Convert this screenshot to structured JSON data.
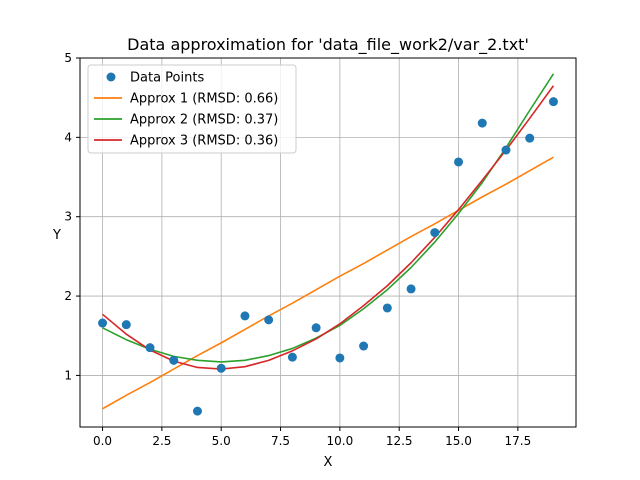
{
  "chart_data": {
    "type": "line",
    "title": "Data approximation for 'data_file_work2/var_2.txt'",
    "xlabel": "X",
    "ylabel": "Y",
    "xlim": [
      -0.95,
      19.95
    ],
    "ylim": [
      0.35,
      5.0
    ],
    "grid": true,
    "legend_position": "top-left",
    "x_ticks": [
      0.0,
      2.5,
      5.0,
      7.5,
      10.0,
      12.5,
      15.0,
      17.5
    ],
    "x_tick_labels": [
      "0.0",
      "2.5",
      "5.0",
      "7.5",
      "10.0",
      "12.5",
      "15.0",
      "17.5"
    ],
    "y_ticks": [
      1,
      2,
      3,
      4,
      5
    ],
    "y_tick_labels": [
      "1",
      "2",
      "3",
      "4",
      "5"
    ],
    "scatter": {
      "name": "Data Points",
      "color": "#1f77b4",
      "x": [
        0,
        1,
        2,
        3,
        4,
        5,
        6,
        7,
        8,
        9,
        10,
        11,
        12,
        13,
        14,
        15,
        16,
        17,
        18,
        19
      ],
      "y": [
        1.66,
        1.64,
        1.35,
        1.19,
        0.55,
        1.09,
        1.75,
        1.7,
        1.23,
        1.6,
        1.22,
        1.37,
        1.85,
        2.09,
        2.8,
        3.69,
        4.18,
        3.84,
        3.99,
        4.45
      ]
    },
    "series": [
      {
        "name": "Approx 1 (RMSD: 0.66)",
        "color": "#ff7f0e",
        "x": [
          0,
          1,
          2,
          3,
          4,
          5,
          6,
          7,
          8,
          9,
          10,
          11,
          12,
          13,
          14,
          15,
          16,
          17,
          18,
          19
        ],
        "y": [
          0.58,
          0.75,
          0.91,
          1.08,
          1.25,
          1.41,
          1.58,
          1.75,
          1.91,
          2.08,
          2.25,
          2.41,
          2.58,
          2.75,
          2.91,
          3.08,
          3.25,
          3.41,
          3.58,
          3.75
        ]
      },
      {
        "name": "Approx 2 (RMSD: 0.37)",
        "color": "#2ca02c",
        "x": [
          0,
          1,
          2,
          3,
          4,
          5,
          6,
          7,
          8,
          9,
          10,
          11,
          12,
          13,
          14,
          15,
          16,
          17,
          18,
          19
        ],
        "y": [
          1.6,
          1.45,
          1.33,
          1.24,
          1.19,
          1.17,
          1.19,
          1.25,
          1.34,
          1.47,
          1.63,
          1.84,
          2.08,
          2.36,
          2.68,
          3.04,
          3.43,
          3.87,
          4.34,
          4.8
        ]
      },
      {
        "name": "Approx 3 (RMSD: 0.36)",
        "color": "#d62728",
        "x": [
          0,
          1,
          2,
          3,
          4,
          5,
          6,
          7,
          8,
          9,
          10,
          11,
          12,
          13,
          14,
          15,
          16,
          17,
          18,
          19
        ],
        "y": [
          1.77,
          1.52,
          1.32,
          1.18,
          1.1,
          1.08,
          1.11,
          1.19,
          1.31,
          1.46,
          1.65,
          1.88,
          2.13,
          2.42,
          2.74,
          3.09,
          3.46,
          3.84,
          4.24,
          4.65
        ]
      }
    ]
  }
}
